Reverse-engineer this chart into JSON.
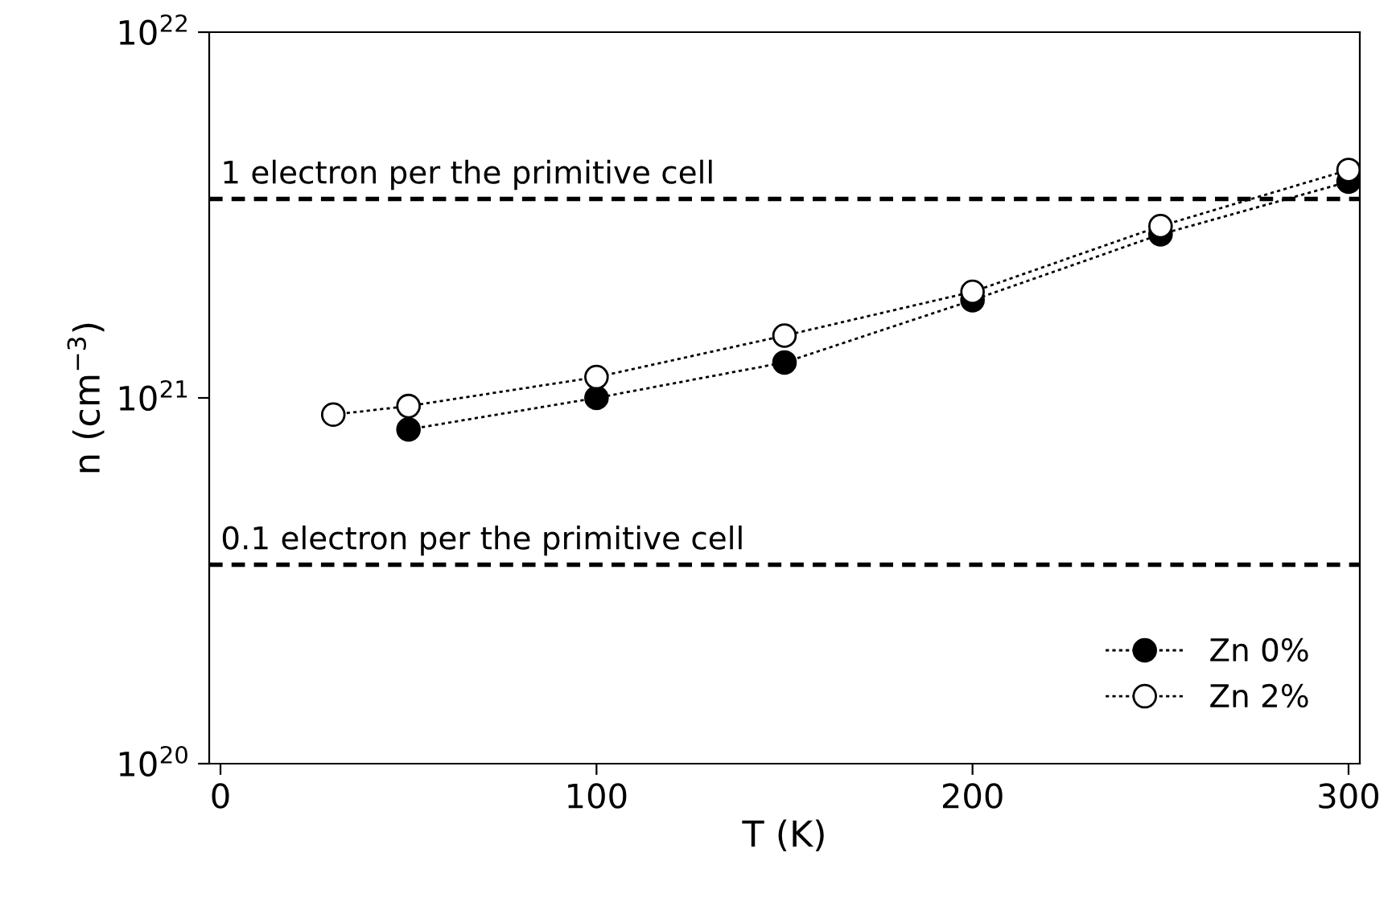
{
  "chart_data": {
    "type": "line",
    "xlabel": "T (K)",
    "ylabel": "n (cm$^{−3}$)",
    "xlim": [
      -3,
      303
    ],
    "xticks": [
      0,
      100,
      200,
      300
    ],
    "ylim": [
      1e+20,
      1e+22
    ],
    "yticks": [
      {
        "value": 1e+20,
        "label": "10$^{20}$"
      },
      {
        "value": 1e+21,
        "label": "10$^{21}$"
      },
      {
        "value": 1e+22,
        "label": "10$^{22}$"
      }
    ],
    "log": "y",
    "grid": false,
    "legend": "bottom right",
    "marker": "circle",
    "line_style": "dotted",
    "series": [
      {
        "name": "Zn 0%",
        "color": "#000000",
        "x": [
          50,
          100,
          150,
          200,
          250,
          300
        ],
        "values": [
          8.2e+20,
          1e+21,
          1.25e+21,
          1.85e+21,
          2.8e+21,
          3.9e+21
        ]
      },
      {
        "name": "Zn 2%",
        "color": "#ffffff",
        "x": [
          30,
          50,
          100,
          150,
          200,
          250,
          300
        ],
        "values": [
          9e+20,
          9.5e+20,
          1.14e+21,
          1.48e+21,
          1.95e+21,
          2.95e+21,
          4.2e+21
        ]
      }
    ],
    "ref_lines": [
      {
        "axis": "y",
        "value": 3.5e+21,
        "label": "1 electron per the primitive cell",
        "color": "#000000",
        "line_style": "dashed"
      },
      {
        "axis": "y",
        "value": 3.5e+20,
        "label": "0.1 electron per the primitive cell",
        "color": "#000000",
        "line_style": "dashed"
      }
    ]
  }
}
